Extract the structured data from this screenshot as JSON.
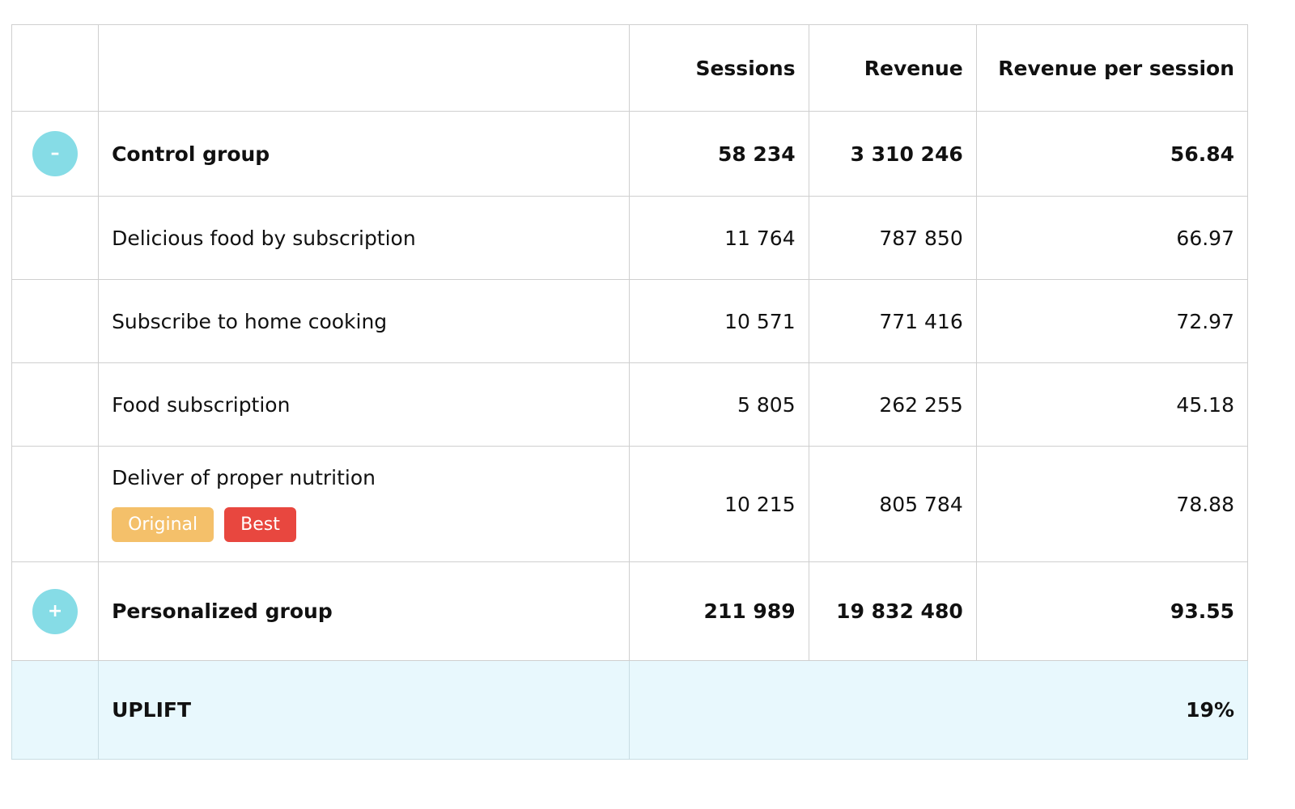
{
  "columns": {
    "sessions": "Sessions",
    "revenue": "Revenue",
    "revenue_per_session": "Revenue per session"
  },
  "control_group": {
    "toggle_symbol": "–",
    "label": "Control group",
    "sessions": "58 234",
    "revenue": "3 310 246",
    "revenue_per_session": "56.84"
  },
  "variants": [
    {
      "label": "Delicious food by subscription",
      "sessions": "11 764",
      "revenue": "787 850",
      "revenue_per_session": "66.97"
    },
    {
      "label": "Subscribe to home cooking",
      "sessions": "10 571",
      "revenue": "771 416",
      "revenue_per_session": "72.97"
    },
    {
      "label": "Food subscription",
      "sessions": "5 805",
      "revenue": "262 255",
      "revenue_per_session": "45.18"
    },
    {
      "label": "Deliver of proper nutrition",
      "sessions": "10 215",
      "revenue": "805 784",
      "revenue_per_session": "78.88",
      "badges": {
        "original": "Original",
        "best": "Best"
      }
    }
  ],
  "personalized_group": {
    "toggle_symbol": "+",
    "label": "Personalized group",
    "sessions": "211 989",
    "revenue": "19 832 480",
    "revenue_per_session": "93.55"
  },
  "uplift": {
    "label": "UPLIFT",
    "value": "19%"
  },
  "colors": {
    "toggle": "#86dce6",
    "badge_original": "#f4c06a",
    "badge_best": "#e8473f",
    "uplift_bg": "#e8f8fd"
  }
}
